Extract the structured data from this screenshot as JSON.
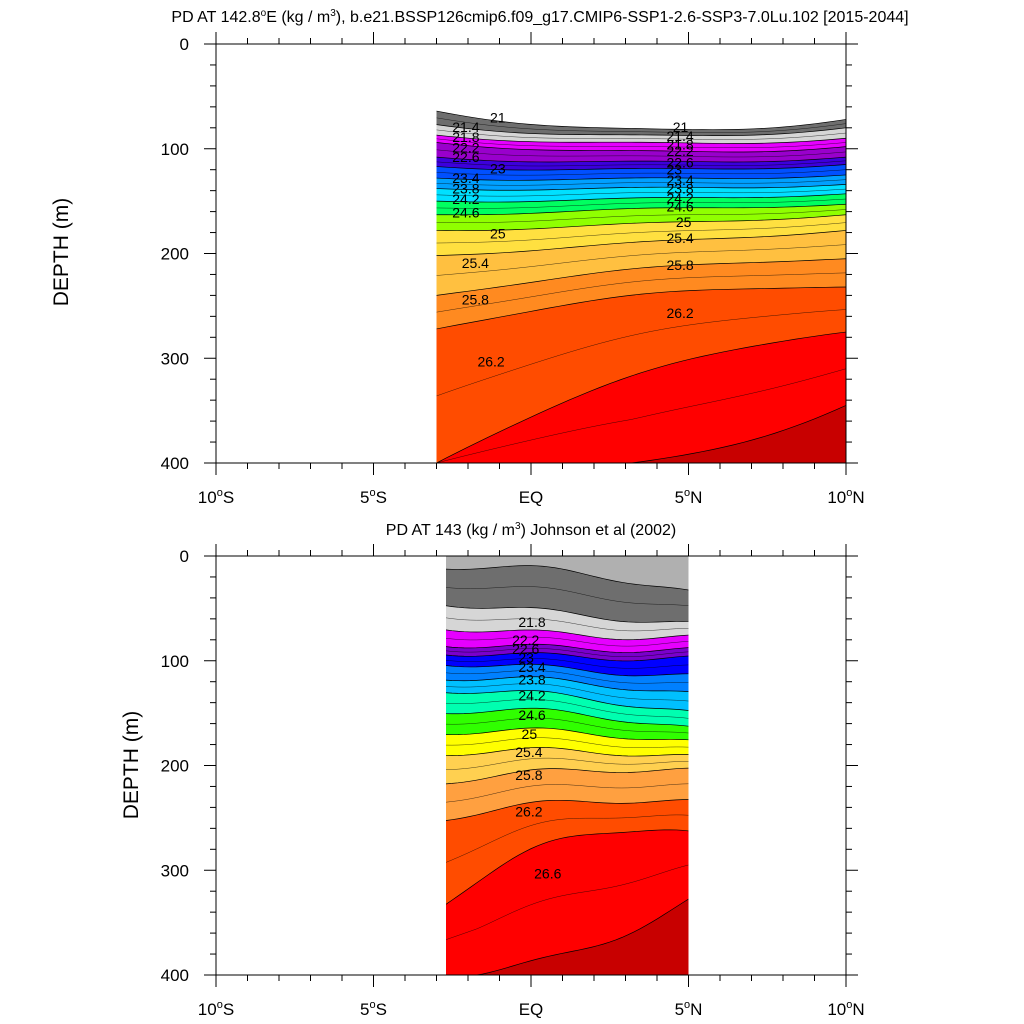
{
  "chart_data": [
    {
      "type": "contour",
      "title_main": "PD AT 142.8",
      "title_deg": "o",
      "title_mid": "E (kg / m",
      "title_sup": "3",
      "title_rest": "), b.e21.BSSP126cmip6.f09_g17.CMIP6-SSP1-2.6-SSP3-7.0Lu.102 [2015-2044]",
      "ylabel": "DEPTH (m)",
      "ylim": [
        400,
        0
      ],
      "xlim": [
        -10,
        10
      ],
      "y_ticks": [
        "0",
        "100",
        "200",
        "300",
        "400"
      ],
      "x_ticks": [
        {
          "value": -10,
          "num": "10",
          "deg": "o",
          "hemi": "S"
        },
        {
          "value": -5,
          "num": "5",
          "deg": "o",
          "hemi": "S"
        },
        {
          "value": 0,
          "num": "EQ",
          "deg": "",
          "hemi": ""
        },
        {
          "value": 5,
          "num": "5",
          "deg": "o",
          "hemi": "N"
        },
        {
          "value": 10,
          "num": "10",
          "deg": "o",
          "hemi": "N"
        }
      ],
      "data_x_range": [
        -3,
        10
      ],
      "levels": [
        21,
        21.2,
        21.4,
        21.6,
        21.8,
        22,
        22.2,
        22.4,
        22.6,
        22.8,
        23,
        23.2,
        23.4,
        23.6,
        23.8,
        24,
        24.2,
        24.4,
        24.6,
        24.8,
        25,
        25.2,
        25.4,
        25.6,
        25.8,
        26,
        26.2,
        26.4,
        26.6
      ],
      "isopleths": [
        {
          "level": 21,
          "depth_west": 64,
          "depth_east": 72,
          "depth_mid": 82
        },
        {
          "level": 21.4,
          "depth_west": 77,
          "depth_east": 80,
          "depth_mid": 88
        },
        {
          "level": 21.8,
          "depth_west": 87,
          "depth_east": 90,
          "depth_mid": 95
        },
        {
          "level": 22.2,
          "depth_west": 94,
          "depth_east": 98,
          "depth_mid": 103
        },
        {
          "level": 22.6,
          "depth_west": 108,
          "depth_east": 108,
          "depth_mid": 113
        },
        {
          "level": 23,
          "depth_west": 117,
          "depth_east": 115,
          "depth_mid": 120
        },
        {
          "level": 23.4,
          "depth_west": 128,
          "depth_east": 125,
          "depth_mid": 129
        },
        {
          "level": 23.8,
          "depth_west": 138,
          "depth_east": 134,
          "depth_mid": 138
        },
        {
          "level": 24.2,
          "depth_west": 150,
          "depth_east": 143,
          "depth_mid": 148
        },
        {
          "level": 24.6,
          "depth_west": 163,
          "depth_east": 153,
          "depth_mid": 158
        },
        {
          "level": 25,
          "depth_west": 178,
          "depth_east": 163,
          "depth_mid": 172
        },
        {
          "level": 25.4,
          "depth_west": 202,
          "depth_east": 178,
          "depth_mid": 190
        },
        {
          "level": 25.8,
          "depth_west": 240,
          "depth_east": 205,
          "depth_mid": 215
        },
        {
          "level": 26.2,
          "depth_west": 272,
          "depth_east": 232,
          "depth_mid": 240
        },
        {
          "level": 26.6,
          "depth_west": 400,
          "depth_east": 275,
          "depth_mid": 315
        },
        {
          "level": 27,
          "depth_west": 400,
          "depth_east": 345,
          "depth_mid": 400
        }
      ],
      "contour_labels": [
        {
          "text": "21",
          "x": -1.3,
          "y": 70
        },
        {
          "text": "21.4",
          "x": -2.5,
          "y": 79
        },
        {
          "text": "21.8",
          "x": -2.5,
          "y": 89
        },
        {
          "text": "22.2",
          "x": -2.5,
          "y": 99
        },
        {
          "text": "22.6",
          "x": -2.5,
          "y": 108
        },
        {
          "text": "23",
          "x": -1.3,
          "y": 119
        },
        {
          "text": "23.4",
          "x": -2.5,
          "y": 128
        },
        {
          "text": "23.8",
          "x": -2.5,
          "y": 138
        },
        {
          "text": "24.2",
          "x": -2.5,
          "y": 148
        },
        {
          "text": "24.6",
          "x": -2.5,
          "y": 161
        },
        {
          "text": "25",
          "x": -1.3,
          "y": 181
        },
        {
          "text": "25.4",
          "x": -2.2,
          "y": 209
        },
        {
          "text": "25.8",
          "x": -2.2,
          "y": 244
        },
        {
          "text": "26.2",
          "x": -1.7,
          "y": 303
        },
        {
          "text": "21",
          "x": 4.5,
          "y": 79
        },
        {
          "text": "21.4",
          "x": 4.3,
          "y": 88
        },
        {
          "text": "21.8",
          "x": 4.3,
          "y": 96
        },
        {
          "text": "22.2",
          "x": 4.3,
          "y": 102
        },
        {
          "text": "22.6",
          "x": 4.3,
          "y": 113
        },
        {
          "text": "23",
          "x": 4.3,
          "y": 120
        },
        {
          "text": "23.4",
          "x": 4.3,
          "y": 130
        },
        {
          "text": "23.8",
          "x": 4.3,
          "y": 138
        },
        {
          "text": "24.2",
          "x": 4.3,
          "y": 147
        },
        {
          "text": "24.6",
          "x": 4.3,
          "y": 155
        },
        {
          "text": "25",
          "x": 4.6,
          "y": 170
        },
        {
          "text": "25.4",
          "x": 4.3,
          "y": 185
        },
        {
          "text": "25.8",
          "x": 4.3,
          "y": 211
        },
        {
          "text": "26.2",
          "x": 4.3,
          "y": 257
        }
      ]
    },
    {
      "type": "contour",
      "title_main": "PD AT 143 (kg / m",
      "title_sup": "3",
      "title_rest": ") Johnson et al (2002)",
      "ylabel": "DEPTH (m)",
      "ylim": [
        400,
        0
      ],
      "xlim": [
        -10,
        10
      ],
      "y_ticks": [
        "0",
        "100",
        "200",
        "300",
        "400"
      ],
      "x_ticks": [
        {
          "value": -10,
          "num": "10",
          "deg": "o",
          "hemi": "S"
        },
        {
          "value": -5,
          "num": "5",
          "deg": "o",
          "hemi": "S"
        },
        {
          "value": 0,
          "num": "EQ",
          "deg": "",
          "hemi": ""
        },
        {
          "value": 5,
          "num": "5",
          "deg": "o",
          "hemi": "N"
        },
        {
          "value": 10,
          "num": "10",
          "deg": "o",
          "hemi": "N"
        }
      ],
      "data_x_range": [
        -2.7,
        5
      ],
      "levels": [
        21,
        21.2,
        21.4,
        21.6,
        21.8,
        22,
        22.2,
        22.4,
        22.6,
        22.8,
        23,
        23.2,
        23.4,
        23.6,
        23.8,
        24,
        24.2,
        24.4,
        24.6,
        24.8,
        25,
        25.2,
        25.4,
        25.6,
        25.8,
        26,
        26.2,
        26.4,
        26.6
      ],
      "isopleths": [
        {
          "level": 21.4,
          "depth_west": 10,
          "depth_east": 35,
          "depth_mid": 15
        },
        {
          "level": 21.8,
          "depth_west": 45,
          "depth_east": 65,
          "depth_mid": 55
        },
        {
          "level": 22.2,
          "depth_west": 68,
          "depth_east": 78,
          "depth_mid": 75
        },
        {
          "level": 22.6,
          "depth_west": 84,
          "depth_east": 90,
          "depth_mid": 88
        },
        {
          "level": 23,
          "depth_west": 92,
          "depth_east": 98,
          "depth_mid": 96
        },
        {
          "level": 23.4,
          "depth_west": 102,
          "depth_east": 115,
          "depth_mid": 108
        },
        {
          "level": 23.8,
          "depth_west": 116,
          "depth_east": 132,
          "depth_mid": 120
        },
        {
          "level": 24.2,
          "depth_west": 128,
          "depth_east": 150,
          "depth_mid": 134
        },
        {
          "level": 24.6,
          "depth_west": 148,
          "depth_east": 165,
          "depth_mid": 150
        },
        {
          "level": 25,
          "depth_west": 168,
          "depth_east": 178,
          "depth_mid": 168
        },
        {
          "level": 25.4,
          "depth_west": 188,
          "depth_east": 192,
          "depth_mid": 186
        },
        {
          "level": 25.8,
          "depth_west": 215,
          "depth_east": 205,
          "depth_mid": 205
        },
        {
          "level": 26.2,
          "depth_west": 250,
          "depth_east": 235,
          "depth_mid": 235
        },
        {
          "level": 26.6,
          "depth_west": 330,
          "depth_east": 265,
          "depth_mid": 270
        },
        {
          "level": 27,
          "depth_west": 400,
          "depth_east": 330,
          "depth_mid": 380
        }
      ],
      "contour_labels": [
        {
          "text": "21.8",
          "x": -0.4,
          "y": 63
        },
        {
          "text": "22.2",
          "x": -0.6,
          "y": 80
        },
        {
          "text": "22.6",
          "x": -0.6,
          "y": 89
        },
        {
          "text": "23",
          "x": -0.4,
          "y": 97
        },
        {
          "text": "23.4",
          "x": -0.4,
          "y": 106
        },
        {
          "text": "23.8",
          "x": -0.4,
          "y": 118
        },
        {
          "text": "24.2",
          "x": -0.4,
          "y": 133
        },
        {
          "text": "24.6",
          "x": -0.4,
          "y": 152
        },
        {
          "text": "25",
          "x": -0.3,
          "y": 170
        },
        {
          "text": "25.4",
          "x": -0.5,
          "y": 187
        },
        {
          "text": "25.8",
          "x": -0.5,
          "y": 209
        },
        {
          "text": "26.2",
          "x": -0.5,
          "y": 244
        },
        {
          "text": "26.6",
          "x": 0.1,
          "y": 303
        }
      ]
    }
  ],
  "colors": {
    "missing": "#b0b0b0",
    "level_fills": [
      "#6e6e6e",
      "#a3a3a3",
      "#d6d6d6",
      "#ff00ff",
      "#e600ff",
      "#cc00e0",
      "#9900cc",
      "#7a00cc",
      "#3c00dc",
      "#0000ff",
      "#0050ff",
      "#0080ff",
      "#00a0ff",
      "#00c0ff",
      "#00e0ff",
      "#00ffe0",
      "#00ffb0",
      "#00ff60",
      "#30ff00",
      "#90ff00",
      "#ffff00",
      "#ffe040",
      "#ffd050",
      "#ffc040",
      "#ffa040",
      "#ff8a20",
      "#ff7000",
      "#ff4c00",
      "#ff2000",
      "#ff0000",
      "#e00000",
      "#c80000"
    ]
  }
}
